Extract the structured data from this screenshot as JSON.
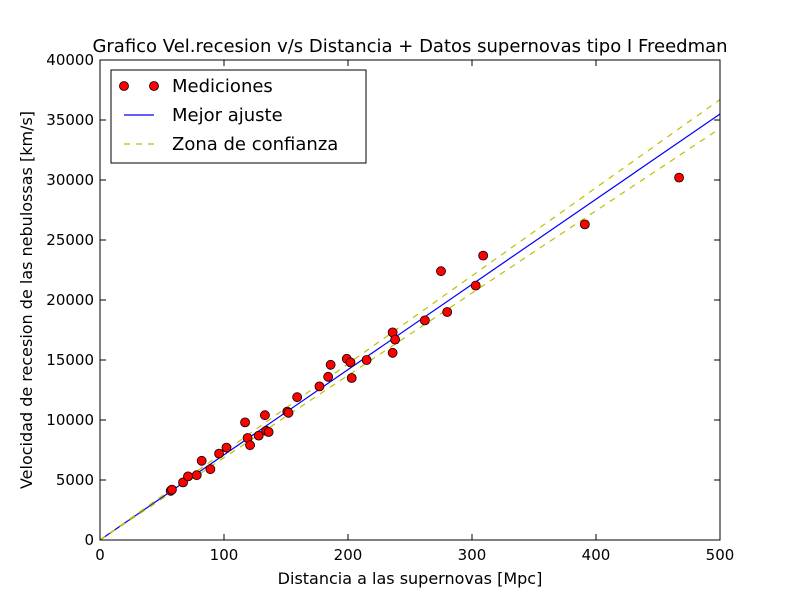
{
  "chart_data": {
    "type": "scatter",
    "title": "Grafico Vel.recesion v/s Distancia + Datos supernovas tipo I Freedman",
    "xlabel": "Distancia a las supernovas [Mpc]",
    "ylabel": "Velocidad de recesion de las nebulossas [km/s]",
    "xlim": [
      0,
      500
    ],
    "ylim": [
      0,
      40000
    ],
    "xticks": [
      "0",
      "100",
      "200",
      "300",
      "400",
      "500"
    ],
    "yticks": [
      "0",
      "5000",
      "10000",
      "15000",
      "20000",
      "25000",
      "30000",
      "35000",
      "40000"
    ],
    "grid": false,
    "legend_position": "top-left",
    "legend": [
      "Mediciones",
      "Mejor ajuste",
      "Zona de confianza"
    ],
    "colors": {
      "points": "#ff0000",
      "fit": "#0000ff",
      "confidence": "#bfbf00"
    },
    "series": [
      {
        "name": "Mediciones",
        "type": "scatter",
        "points": [
          [
            57,
            4100
          ],
          [
            58,
            4200
          ],
          [
            67,
            4800
          ],
          [
            71,
            5300
          ],
          [
            78,
            5400
          ],
          [
            82,
            6600
          ],
          [
            89,
            5900
          ],
          [
            96,
            7200
          ],
          [
            102,
            7700
          ],
          [
            117,
            9800
          ],
          [
            119,
            8500
          ],
          [
            121,
            7900
          ],
          [
            128,
            8700
          ],
          [
            133,
            10400
          ],
          [
            134,
            9100
          ],
          [
            136,
            9000
          ],
          [
            151,
            10700
          ],
          [
            152,
            10600
          ],
          [
            159,
            11900
          ],
          [
            177,
            12800
          ],
          [
            184,
            13600
          ],
          [
            186,
            14600
          ],
          [
            199,
            15100
          ],
          [
            202,
            14800
          ],
          [
            203,
            13500
          ],
          [
            215,
            15000
          ],
          [
            236,
            17300
          ],
          [
            236,
            15600
          ],
          [
            238,
            16700
          ],
          [
            262,
            18300
          ],
          [
            275,
            22400
          ],
          [
            280,
            19000
          ],
          [
            303,
            21200
          ],
          [
            309,
            23700
          ],
          [
            391,
            26300
          ],
          [
            467,
            30200
          ]
        ]
      },
      {
        "name": "Mejor ajuste",
        "type": "line",
        "style": "solid",
        "points": [
          [
            0,
            0
          ],
          [
            500,
            35500
          ]
        ]
      },
      {
        "name": "Zona de confianza",
        "type": "line",
        "style": "dashed",
        "points": [
          [
            0,
            0
          ],
          [
            500,
            36700
          ]
        ]
      },
      {
        "name": "Zona de confianza",
        "type": "line",
        "style": "dashed",
        "points": [
          [
            0,
            0
          ],
          [
            500,
            34300
          ]
        ]
      }
    ]
  }
}
